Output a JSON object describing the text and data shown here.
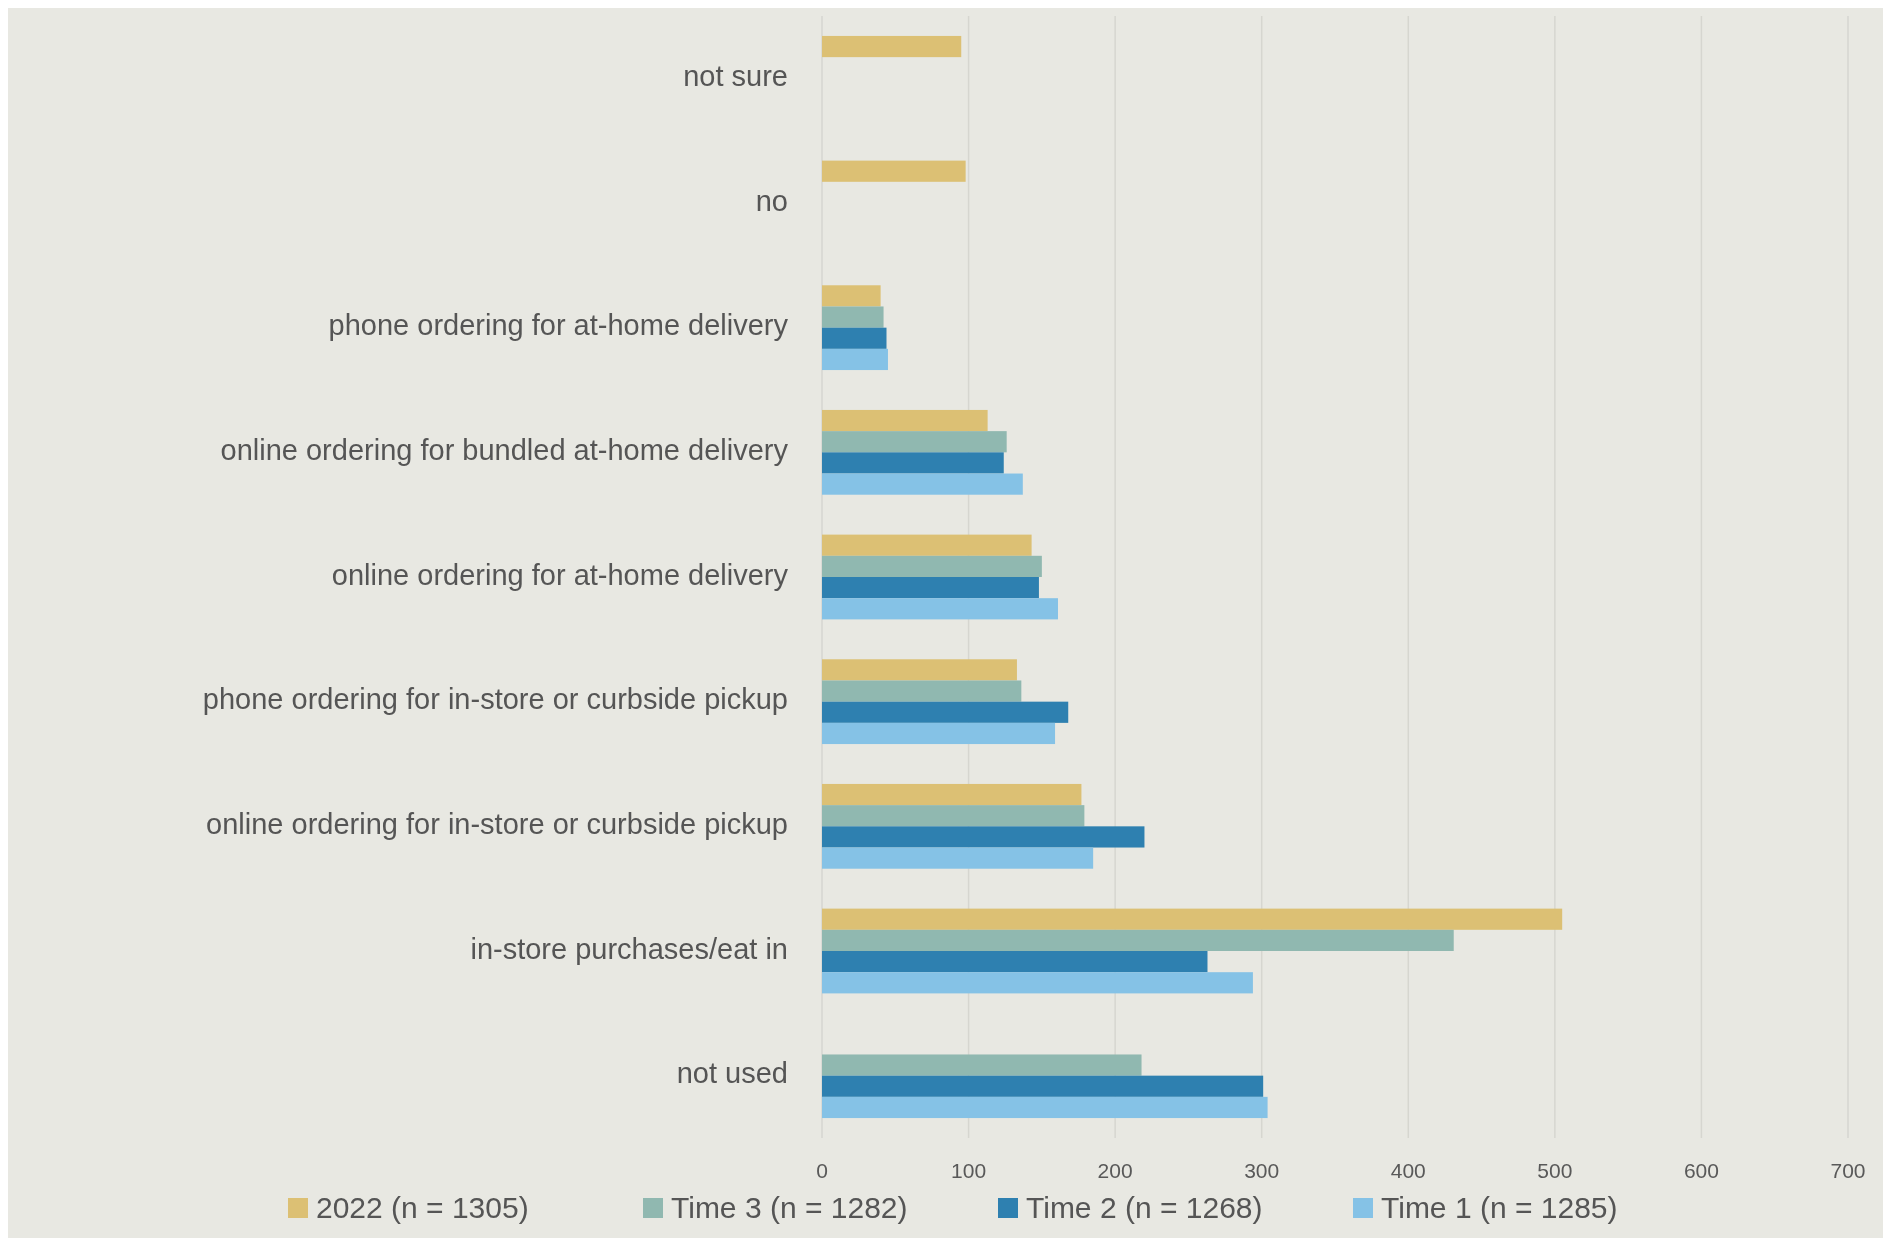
{
  "chart_data": {
    "type": "bar",
    "orientation": "horizontal",
    "categories": [
      "not sure",
      "no",
      "phone ordering for at-home delivery",
      "online ordering for bundled at-home delivery",
      "online ordering for at-home delivery",
      "phone ordering for in-store or curbside pickup",
      "online ordering for in-store or curbside pickup",
      "in-store purchases/eat in",
      "not used"
    ],
    "series": [
      {
        "name": "2022 (n = 1305)",
        "color": "#dcc074",
        "values": [
          95,
          98,
          40,
          113,
          143,
          133,
          177,
          505,
          null
        ]
      },
      {
        "name": "Time 3 (n = 1282)",
        "color": "#90b8b0",
        "values": [
          null,
          null,
          42,
          126,
          150,
          136,
          179,
          431,
          218
        ]
      },
      {
        "name": "Time 2 (n = 1268)",
        "color": "#2e80b0",
        "values": [
          null,
          null,
          44,
          124,
          148,
          168,
          220,
          263,
          301
        ]
      },
      {
        "name": "Time 1 (n = 1285)",
        "color": "#85c2e6",
        "values": [
          null,
          null,
          45,
          137,
          161,
          159,
          185,
          294,
          304
        ]
      }
    ],
    "xlim": [
      0,
      700
    ],
    "xticks": [
      0,
      100,
      200,
      300,
      400,
      500,
      600,
      700
    ],
    "grid": "x",
    "legend": "bottom"
  }
}
